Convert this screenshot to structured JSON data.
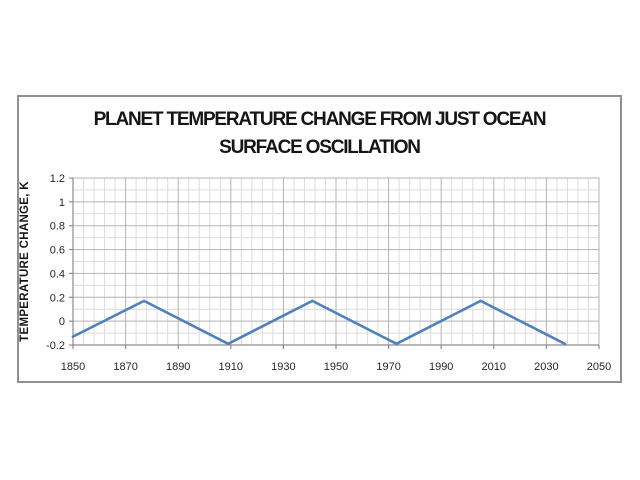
{
  "colors": {
    "line": "#4f81bd",
    "grid_minor": "#dcdcdc",
    "grid_major": "#b3b3b3",
    "axis": "#8c8c8c",
    "tick_text": "#262626",
    "title_text": "#151515",
    "frame_border": "#909090",
    "background": "#ffffff"
  },
  "chart_data": {
    "type": "line",
    "title": "PLANET TEMPERATURE CHANGE FROM JUST OCEAN SURFACE OSCILLATION",
    "title_lines": [
      "PLANET TEMPERATURE CHANGE FROM JUST OCEAN",
      "SURFACE OSCILLATION"
    ],
    "xlabel": "",
    "ylabel": "TEMPERATURE CHANGE, K",
    "xlim": [
      1850,
      2050
    ],
    "ylim": [
      -0.2,
      1.2
    ],
    "x_tick_values": [
      1850,
      1870,
      1890,
      1910,
      1930,
      1950,
      1970,
      1990,
      2010,
      2030,
      2050
    ],
    "x_tick_labels": [
      "1850",
      "1870",
      "1890",
      "1910",
      "1930",
      "1950",
      "1970",
      "1990",
      "2010",
      "2030",
      "2050"
    ],
    "y_tick_values": [
      -0.2,
      0,
      0.2,
      0.4,
      0.6,
      0.8,
      1,
      1.2
    ],
    "y_tick_labels": [
      "-0.2",
      "0",
      "0.2",
      "0.4",
      "0.6",
      "0.8",
      "1",
      "1.2"
    ],
    "x_minor_step": 4,
    "y_minor_step": 0.1,
    "grid": "major+minor",
    "legend": "none",
    "series": [
      {
        "name": "ocean surface oscillation",
        "color": "#4f81bd",
        "points": [
          [
            1850,
            -0.13
          ],
          [
            1877,
            0.17
          ],
          [
            1909,
            -0.19
          ],
          [
            1941,
            0.17
          ],
          [
            1973,
            -0.19
          ],
          [
            2005,
            0.17
          ],
          [
            2037,
            -0.19
          ]
        ]
      }
    ]
  }
}
